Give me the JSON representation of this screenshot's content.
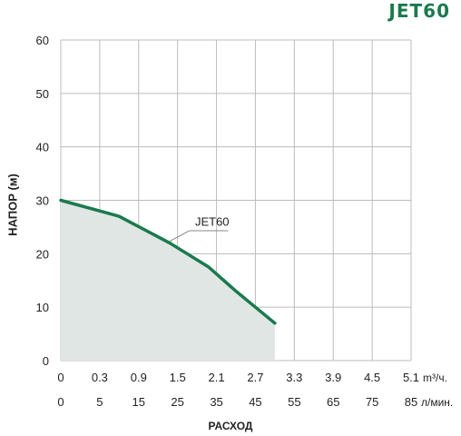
{
  "chart_data": {
    "type": "line",
    "title": "JET60",
    "ylabel": "НАПОР (м)",
    "xlabel": "РАСХОД",
    "ylim": [
      0,
      60
    ],
    "yticks": [
      "0",
      "10",
      "20",
      "30",
      "40",
      "50",
      "60"
    ],
    "xlim": [
      0,
      90
    ],
    "x_ticks_m3h": [
      "0",
      "0.3",
      "0.9",
      "1.5",
      "2.1",
      "2.7",
      "3.3",
      "3.9",
      "4.5",
      "5.1"
    ],
    "x_unit_m3h": "m³/ч.",
    "x_ticks_lmin": [
      "0",
      "5",
      "15",
      "25",
      "35",
      "45",
      "55",
      "65",
      "75",
      "85"
    ],
    "x_unit_lmin": "л/мин.",
    "grid": true,
    "area_fill": true,
    "series": [
      {
        "name": "JET60",
        "x": [
          0,
          15,
          28,
          38,
          45,
          50,
          55
        ],
        "y": [
          30,
          27,
          22,
          17.5,
          13,
          10,
          7
        ]
      }
    ],
    "colors": {
      "line": "#1a7a4e",
      "fill": "#dfe6e4",
      "grid": "#bcbcbc",
      "title": "#1a7a4e"
    }
  }
}
